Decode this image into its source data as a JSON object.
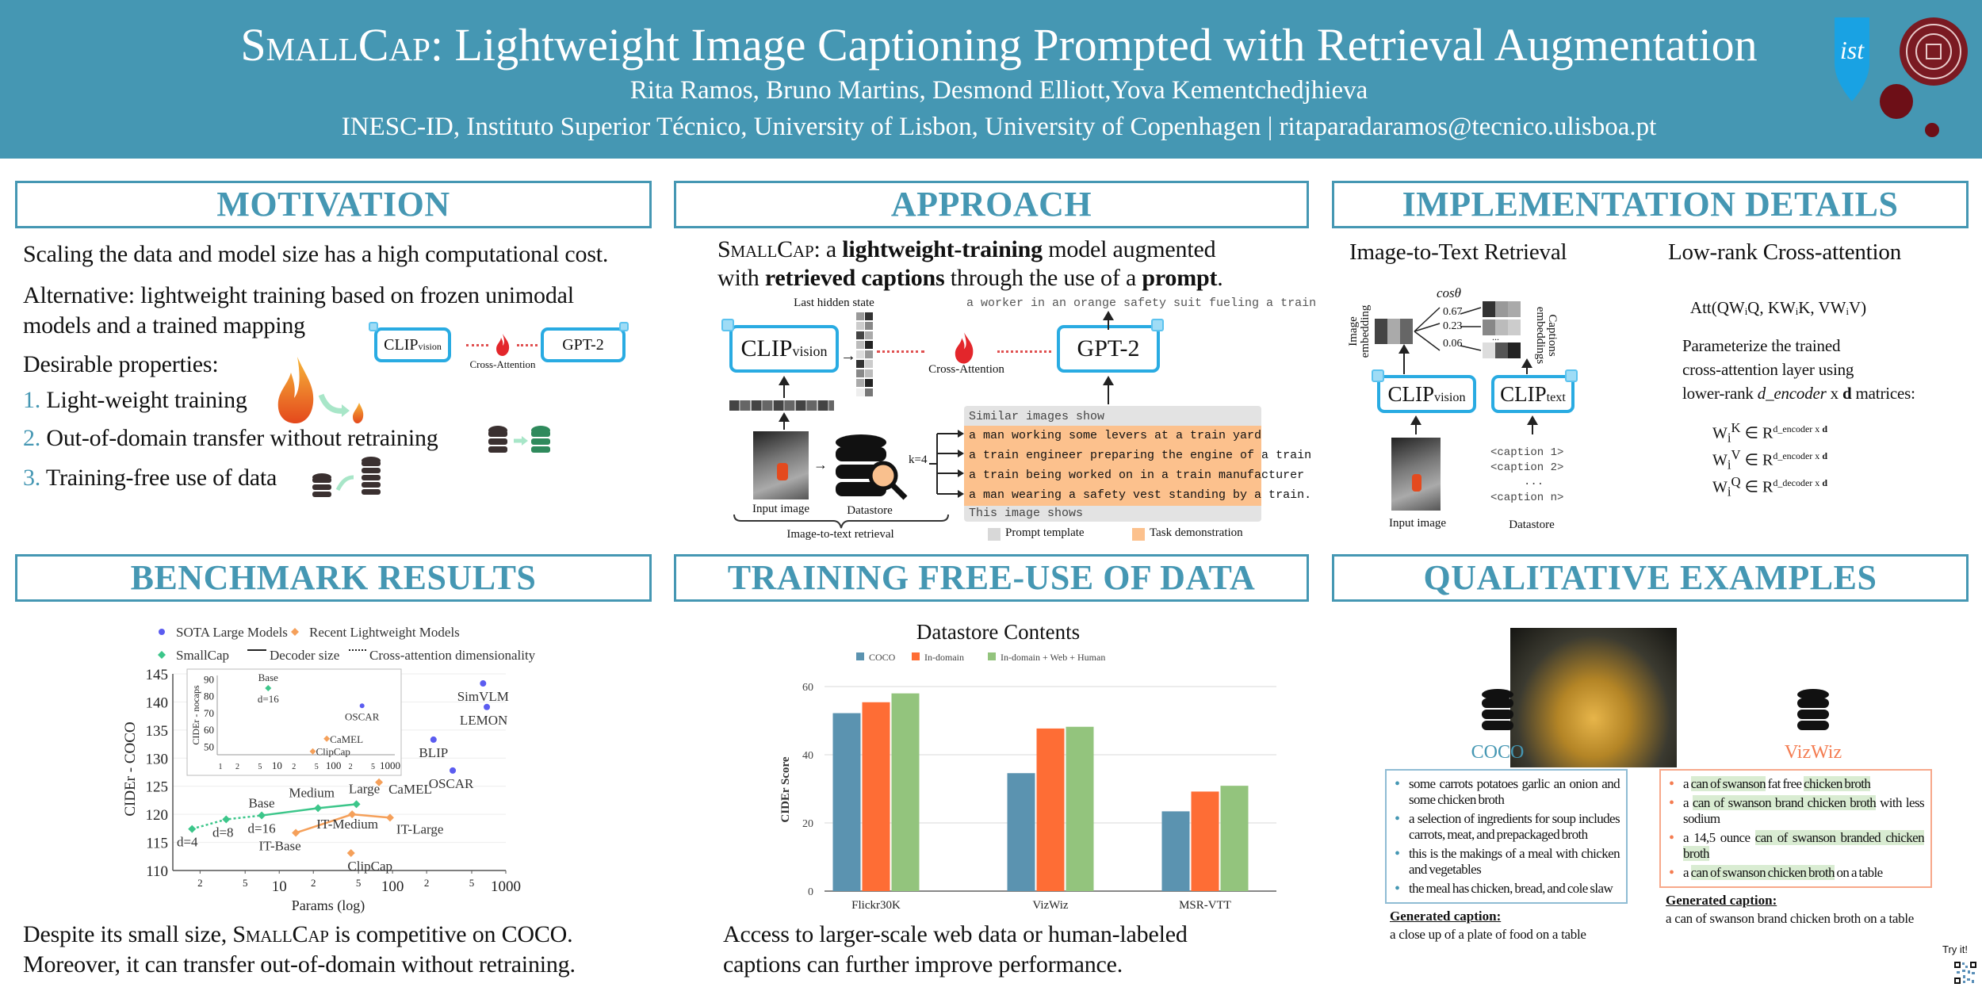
{
  "header": {
    "title_name": "SmallCap",
    "title_rest": ": Lightweight Image Captioning Prompted with Retrieval Augmentation",
    "authors": "Rita Ramos, Bruno Martins, Desmond Elliott,Yova Kementchedjhieva",
    "affiliation": "INESC-ID, Instituto Superior Técnico, University of Lisbon, University of Copenhagen | ritaparadaramos@tecnico.ulisboa.pt",
    "logo_ist": "ist",
    "accent_color": "#4597b3"
  },
  "motivation": {
    "heading": "MOTIVATION",
    "p1": "Scaling the data and model size has a high computational cost.",
    "p2_line1": "Alternative: lightweight training based on frozen unimodal",
    "p2_line2": "models and a trained mapping",
    "desirable": "Desirable properties:",
    "items": [
      {
        "num": "1.",
        "text": "Light-weight training"
      },
      {
        "num": "2.",
        "text": "Out-of-domain transfer without retraining"
      },
      {
        "num": "3.",
        "text": "Training-free use of data"
      }
    ],
    "diagram": {
      "clip": "CLIP",
      "clip_sub": "vision",
      "cross": "Cross-Attention",
      "gpt": "GPT-2"
    }
  },
  "approach": {
    "heading": "APPROACH",
    "intro": {
      "name": "SmallCap",
      "a": ": a ",
      "b1": "lightweight-training",
      "c": " model augmented",
      "d": "with ",
      "b2": "retrieved captions",
      "e": " through the use of a ",
      "b3": "prompt",
      "f": "."
    },
    "last_hidden": "Last hidden state",
    "output_caption": "a worker in an orange safety suit fueling a train",
    "clip": "CLIP",
    "clip_sub": "vision",
    "cross": "Cross-Attention",
    "gpt": "GPT-2",
    "k": "k=4",
    "prompt_head": "Similar images show",
    "prompt_captions": [
      "a man working some levers at a train yard",
      "a train engineer preparing the engine of a train",
      "a train being worked on in a train manufacturer",
      "a man wearing a safety vest standing by a train."
    ],
    "prompt_tail": "This image shows",
    "input_image": "Input image",
    "datastore": "Datastore",
    "retrieval": "Image-to-text retrieval",
    "legend_prompt": "Prompt template",
    "legend_task": "Task demonstration"
  },
  "implementation": {
    "heading": "IMPLEMENTATION DETAILS",
    "left_title": "Image-to-Text Retrieval",
    "right_title": "Low-rank Cross-attention",
    "cos": "cosθ",
    "image_embedding": "Image embedding",
    "captions_embeddings": "Captions embeddings",
    "sims": [
      "0.67",
      "0.23",
      "0.06"
    ],
    "dots": "...",
    "clip": "CLIP",
    "clip_vision": "vision",
    "clip_text": "text",
    "captions": [
      "<caption 1>",
      "<caption 2>",
      "...",
      "<caption n>"
    ],
    "input_image": "Input image",
    "datastore": "Datastore",
    "formula": "Att(QWᵢQ, KWᵢK, VWᵢV)",
    "param_1": "Parameterize the trained",
    "param_2": "cross-attention layer using",
    "param_3a": "lower-rank ",
    "param_3b": "d_encoder",
    "param_3c": " x ",
    "param_3d": "d",
    "param_3e": " matrices:",
    "w_lines": [
      {
        "sup": "K",
        "exp": "d_encoder x ",
        "bold": "d"
      },
      {
        "sup": "V",
        "exp": "d_encoder x ",
        "bold": "d"
      },
      {
        "sup": "Q",
        "exp": "d_decoder x ",
        "bold": "d"
      }
    ]
  },
  "benchmark": {
    "heading": "BENCHMARK RESULTS",
    "text1a": "Despite its small size, ",
    "text1_name": "SmallCap",
    "text1b": " is competitive on COCO.",
    "text2": "Moreover, it can transfer out-of-domain without retraining."
  },
  "training_free": {
    "heading": "TRAINING FREE-USE OF DATA",
    "text1": "Access to larger-scale web data or human-labeled",
    "text2": "captions can further improve performance."
  },
  "qualitative": {
    "heading": "QUALITATIVE EXAMPLES",
    "coco_label": "COCO",
    "vizwiz_label": "VizWiz",
    "coco_color": "#4597b3",
    "vizwiz_color": "#f47c51",
    "coco_captions": [
      "some carrots potatoes garlic an onion and some chicken broth",
      "a selection of ingredients for soup includes carrots, meat, and prepackaged broth",
      "this is the makings of a meal with chicken and vegetables",
      "the meal has chicken, bread, and cole slaw"
    ],
    "vizwiz_captions": [
      [
        {
          "t": "a "
        },
        {
          "t": "can of swanson",
          "hl": true
        },
        {
          "t": " fat free "
        },
        {
          "t": "chicken broth",
          "hl": true
        }
      ],
      [
        {
          "t": "a "
        },
        {
          "t": "can of swanson brand chicken broth",
          "hl": true
        },
        {
          "t": " with less sodium"
        }
      ],
      [
        {
          "t": "a 14,5 ounce "
        },
        {
          "t": "can of swanson branded chicken broth",
          "hl": true
        }
      ],
      [
        {
          "t": "a "
        },
        {
          "t": "can of swanson chicken broth",
          "hl": true
        },
        {
          "t": " on a table"
        }
      ]
    ],
    "generated_label": "Generated caption:",
    "coco_generated": "a close up of a plate of food on a table",
    "vizwiz_generated": "a can of swanson brand chicken broth on a table",
    "try_it": "Try it!"
  },
  "chart_data": [
    {
      "type": "scatter",
      "xlabel": "Params (log)",
      "ylabel": "CIDEr - COCO",
      "xscale": "log",
      "xlim": [
        1.15,
        1000
      ],
      "ylim": [
        110,
        145
      ],
      "yticks": [
        110,
        115,
        120,
        125,
        130,
        135,
        140,
        145
      ],
      "xticks": [
        {
          "v": 2,
          "l": "2"
        },
        {
          "v": 5,
          "l": "5"
        },
        {
          "v": 10,
          "l": "10"
        },
        {
          "v": 20,
          "l": "2"
        },
        {
          "v": 50,
          "l": "5"
        },
        {
          "v": 100,
          "l": "100"
        },
        {
          "v": 200,
          "l": "2"
        },
        {
          "v": 500,
          "l": "5"
        },
        {
          "v": 1000,
          "l": "1000"
        }
      ],
      "grid": true,
      "legend": {
        "placement": "top",
        "entries": [
          "SOTA Large Models",
          "Recent Lightweight Models",
          "SmallCap",
          "Decoder size",
          "Cross-attention dimensionality"
        ]
      },
      "series": [
        {
          "name": "SOTA Large Models",
          "color": "#5b5cf0",
          "marker": "circle",
          "points": [
            {
              "label": "SimVLM",
              "x": 630,
              "y": 143.3
            },
            {
              "label": "LEMON",
              "x": 680,
              "y": 139.1
            },
            {
              "label": "BLIP",
              "x": 230,
              "y": 133.3
            },
            {
              "label": "OSCAR",
              "x": 340,
              "y": 127.8
            }
          ]
        },
        {
          "name": "Recent Lightweight Models",
          "color": "#f5a05a",
          "marker": "diamond",
          "points": [
            {
              "label": "CaMEL",
              "x": 76,
              "y": 125.7
            },
            {
              "label": "IT-Base",
              "x": 14,
              "y": 116.7
            },
            {
              "label": "IT-Medium",
              "x": 44,
              "y": 120.0
            },
            {
              "label": "IT-Large",
              "x": 95,
              "y": 119.4
            },
            {
              "label": "ClipCap",
              "x": 43,
              "y": 113.1
            }
          ],
          "line": [
            "IT-Base",
            "IT-Medium",
            "IT-Large"
          ]
        },
        {
          "name": "SmallCap",
          "color": "#3cc68a",
          "marker": "diamond",
          "points": [
            {
              "label": "d=4",
              "x": 1.7,
              "y": 117.4
            },
            {
              "label": "d=8",
              "x": 3.4,
              "y": 119.1
            },
            {
              "label": "Base",
              "label2": "d=16",
              "x": 7,
              "y": 119.8
            },
            {
              "label": "Medium",
              "x": 22,
              "y": 121.1
            },
            {
              "label": "Large",
              "x": 48,
              "y": 121.8
            }
          ],
          "dotted_line": [
            "d=4",
            "d=8",
            "Base"
          ],
          "line": [
            "Base",
            "Medium",
            "Large"
          ]
        }
      ],
      "inset": {
        "ylabel": "CIDEr - nocaps",
        "xscale": "log",
        "xlim": [
          1,
          1000
        ],
        "ylim": [
          45,
          92
        ],
        "yticks": [
          50,
          60,
          70,
          80,
          90
        ],
        "xticks": [
          {
            "v": 1,
            "l": "1"
          },
          {
            "v": 2,
            "l": "2"
          },
          {
            "v": 5,
            "l": "5"
          },
          {
            "v": 10,
            "l": "10"
          },
          {
            "v": 20,
            "l": "2"
          },
          {
            "v": 50,
            "l": "5"
          },
          {
            "v": 100,
            "l": "100"
          },
          {
            "v": 200,
            "l": "2"
          },
          {
            "v": 500,
            "l": "5"
          },
          {
            "v": 1000,
            "l": "1000"
          }
        ],
        "points": [
          {
            "series": "SmallCap",
            "label": "Base",
            "label2": "d=16",
            "x": 7,
            "y": 84.5
          },
          {
            "series": "SOTA Large Models",
            "label": "OSCAR",
            "x": 320,
            "y": 74
          },
          {
            "series": "Recent Lightweight Models",
            "label": "CaMEL",
            "x": 76,
            "y": 54.5
          },
          {
            "series": "Recent Lightweight Models",
            "label": "ClipCap",
            "x": 43,
            "y": 47
          }
        ]
      }
    },
    {
      "type": "bar",
      "title": "Datastore Contents",
      "xlabel": "",
      "ylabel": "CIDEr Score",
      "ylim": [
        0,
        65
      ],
      "yticks": [
        0,
        20,
        40,
        60
      ],
      "grid": true,
      "legend": {
        "placement": "top"
      },
      "categories": [
        "Flickr30K",
        "VizWiz",
        "MSR-VTT"
      ],
      "series": [
        {
          "name": "COCO",
          "color": "#5b93b0",
          "values": [
            52.2,
            34.6,
            23.4
          ]
        },
        {
          "name": "In-domain",
          "color": "#fe6d35",
          "values": [
            55.4,
            47.7,
            29.2
          ]
        },
        {
          "name": "In-domain + Web + Human",
          "color": "#93c47d",
          "values": [
            58.0,
            48.2,
            30.9
          ]
        }
      ]
    }
  ]
}
